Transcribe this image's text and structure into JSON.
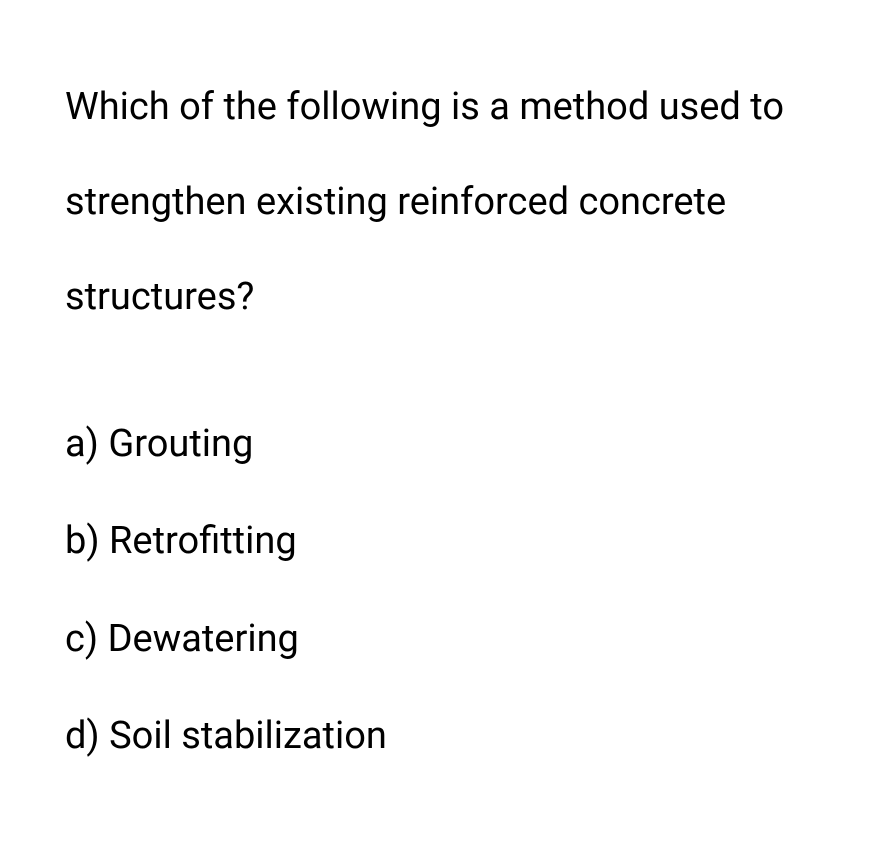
{
  "question": {
    "text": "Which of the following is a method used to strengthen existing reinforced concrete structures?"
  },
  "options": [
    {
      "label": "a)",
      "text": "Grouting"
    },
    {
      "label": "b)",
      "text": "Retrofitting"
    },
    {
      "label": "c)",
      "text": "Dewatering"
    },
    {
      "label": "d)",
      "text": "Soil stabilization"
    }
  ],
  "styling": {
    "background_color": "#ffffff",
    "text_color": "#000000",
    "question_fontsize": 38,
    "option_fontsize": 38,
    "question_line_height": 2.5,
    "option_gap": 48,
    "question_margin_bottom": 75,
    "font_family": "sans-serif",
    "font_weight": 400
  }
}
